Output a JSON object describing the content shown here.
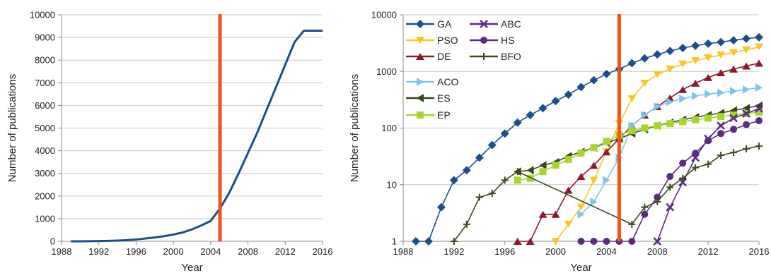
{
  "chart_data": [
    {
      "type": "line",
      "xlabel": "Year",
      "ylabel": "Number of publications",
      "xlim": [
        1988,
        2016
      ],
      "ylim": [
        0,
        10000
      ],
      "xticks": [
        "1988",
        "1992",
        "1996",
        "2000",
        "2004",
        "2008",
        "2012",
        "2016"
      ],
      "yticks": [
        "0",
        "1000",
        "2000",
        "3000",
        "4000",
        "5000",
        "6000",
        "7000",
        "8000",
        "9000",
        "10000"
      ],
      "grid": "horizontal",
      "reference_line": {
        "x": 2005,
        "color": "#f4511e"
      },
      "series": [
        {
          "color": "#1c4e8a",
          "x": [
            1989,
            1990,
            1991,
            1992,
            1993,
            1994,
            1995,
            1996,
            1997,
            1998,
            1999,
            2000,
            2001,
            2002,
            2003,
            2004,
            2005,
            2006,
            2007,
            2008,
            2009,
            2010,
            2011,
            2012,
            2013,
            2014,
            2015,
            2016
          ],
          "y": [
            1,
            1,
            4,
            12,
            18,
            30,
            50,
            80,
            125,
            170,
            225,
            300,
            390,
            530,
            700,
            900,
            1450,
            2150,
            3000,
            3900,
            4800,
            5800,
            6800,
            7800,
            8800,
            9300,
            9300,
            9300
          ]
        }
      ]
    },
    {
      "type": "line",
      "scale": "log",
      "xlabel": "Year",
      "ylabel": "Number of publications",
      "xlim": [
        1988,
        2016
      ],
      "ylim": [
        1,
        10000
      ],
      "xticks": [
        "1988",
        "1992",
        "1996",
        "2000",
        "2004",
        "2008",
        "2012",
        "2016"
      ],
      "yticks": [
        "1",
        "10",
        "100",
        "1000",
        "10000"
      ],
      "grid": "horizontal",
      "legend_position": "top-left",
      "reference_line": {
        "x": 2005,
        "color": "#f4511e"
      },
      "series": [
        {
          "name": "GA",
          "color": "#1c4e8a",
          "marker": "diamond",
          "x": [
            1989,
            1990,
            1991,
            1992,
            1993,
            1994,
            1995,
            1996,
            1997,
            1998,
            1999,
            2000,
            2001,
            2002,
            2003,
            2004,
            2005,
            2006,
            2007,
            2008,
            2009,
            2010,
            2011,
            2012,
            2013,
            2014,
            2015,
            2016
          ],
          "y": [
            1,
            1,
            4,
            12,
            18,
            30,
            50,
            80,
            125,
            170,
            225,
            300,
            390,
            530,
            700,
            900,
            1100,
            1400,
            1700,
            2000,
            2300,
            2600,
            2850,
            3100,
            3300,
            3550,
            3800,
            4000
          ]
        },
        {
          "name": "PSO",
          "color": "#f9c623",
          "marker": "triangle-down",
          "x": [
            2000,
            2001,
            2002,
            2003,
            2004,
            2005,
            2006,
            2007,
            2008,
            2009,
            2010,
            2011,
            2012,
            2013,
            2014,
            2015,
            2016
          ],
          "y": [
            1,
            2,
            4,
            12,
            38,
            120,
            330,
            620,
            880,
            1100,
            1350,
            1550,
            1750,
            1950,
            2150,
            2400,
            2700
          ]
        },
        {
          "name": "DE",
          "color": "#8b1a2e",
          "marker": "triangle-up",
          "x": [
            1997,
            1998,
            1999,
            2000,
            2001,
            2002,
            2003,
            2004,
            2005,
            2006,
            2007,
            2008,
            2009,
            2010,
            2011,
            2012,
            2013,
            2014,
            2015,
            2016
          ],
          "y": [
            1,
            1,
            3,
            3,
            8,
            14,
            22,
            38,
            65,
            110,
            170,
            240,
            340,
            480,
            620,
            780,
            950,
            1100,
            1250,
            1400
          ]
        },
        {
          "name": "ACO",
          "color": "#7cc4f0",
          "marker": "triangle-right",
          "x": [
            2002,
            2003,
            2004,
            2005,
            2006,
            2007,
            2008,
            2009,
            2010,
            2011,
            2012,
            2013,
            2014,
            2015,
            2016
          ],
          "y": [
            3,
            5,
            12,
            30,
            110,
            170,
            240,
            290,
            330,
            370,
            400,
            420,
            450,
            480,
            520
          ]
        },
        {
          "name": "ES",
          "color": "#34481a",
          "marker": "triangle-left",
          "x": [
            1997,
            1998,
            1999,
            2000,
            2001,
            2002,
            2003,
            2004,
            2005,
            2006,
            2007,
            2008,
            2009,
            2010,
            2011,
            2012,
            2013,
            2014,
            2015,
            2016
          ],
          "y": [
            17,
            18,
            22,
            25,
            32,
            38,
            45,
            55,
            65,
            80,
            95,
            110,
            125,
            140,
            155,
            170,
            185,
            205,
            225,
            250
          ]
        },
        {
          "name": "EP",
          "color": "#a8d52d",
          "marker": "square",
          "x": [
            1997,
            1998,
            1999,
            2000,
            2001,
            2002,
            2003,
            2004,
            2005,
            2006,
            2007,
            2008,
            2009,
            2010,
            2011,
            2012,
            2013,
            2014,
            2015,
            2016
          ],
          "y": [
            12,
            13,
            17,
            22,
            28,
            36,
            45,
            58,
            75,
            90,
            100,
            110,
            120,
            130,
            140,
            150,
            160,
            170,
            180,
            190
          ]
        },
        {
          "name": "ABC",
          "color": "#5b2a83",
          "marker": "x",
          "x": [
            2008,
            2009,
            2010,
            2011,
            2012,
            2013,
            2014,
            2015,
            2016
          ],
          "y": [
            1,
            4,
            11,
            30,
            65,
            110,
            150,
            180,
            220
          ]
        },
        {
          "name": "HS",
          "color": "#5b2a83",
          "marker": "circle",
          "x": [
            2002,
            2003,
            2004,
            2005,
            2006,
            2007,
            2008,
            2009,
            2010,
            2011,
            2012,
            2013,
            2014,
            2015,
            2016
          ],
          "y": [
            1,
            1,
            1,
            1,
            1,
            3,
            6,
            14,
            24,
            36,
            60,
            80,
            95,
            115,
            135
          ]
        },
        {
          "name": "BFO",
          "color": "#3a4a1c",
          "marker": "plus",
          "x": [
            1992,
            1993,
            1994,
            1995,
            1996,
            1997,
            2006,
            2007,
            2008,
            2009,
            2010,
            2011,
            2012,
            2013,
            2014,
            2015,
            2016
          ],
          "y": [
            1,
            2,
            6,
            7,
            12,
            17,
            2,
            4,
            5,
            9,
            13,
            20,
            23,
            33,
            37,
            43,
            48
          ]
        }
      ]
    }
  ]
}
